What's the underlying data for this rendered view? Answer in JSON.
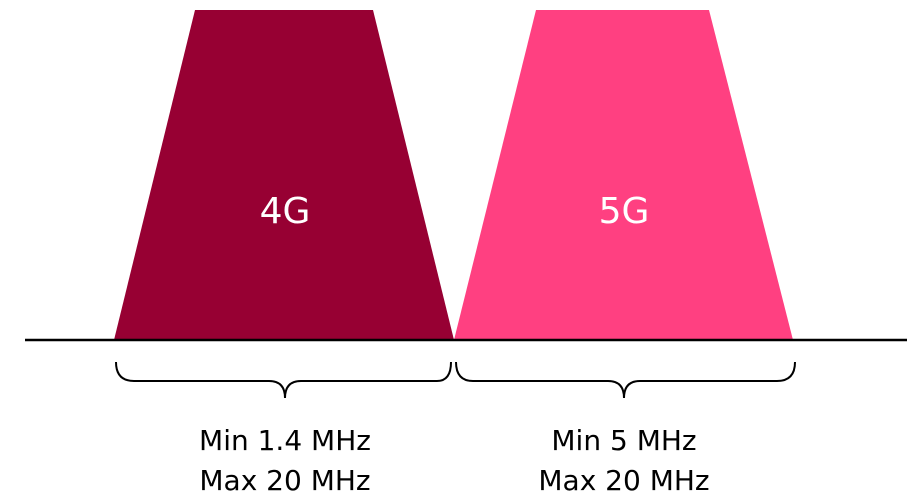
{
  "bands": [
    {
      "label": "4G",
      "color": "#970033",
      "range_min": "Min 1.4 MHz",
      "range_max": "Max 20 MHz"
    },
    {
      "label": "5G",
      "color": "#FF4081",
      "range_min": "Min 5 MHz",
      "range_max": "Max 20 MHz"
    }
  ]
}
